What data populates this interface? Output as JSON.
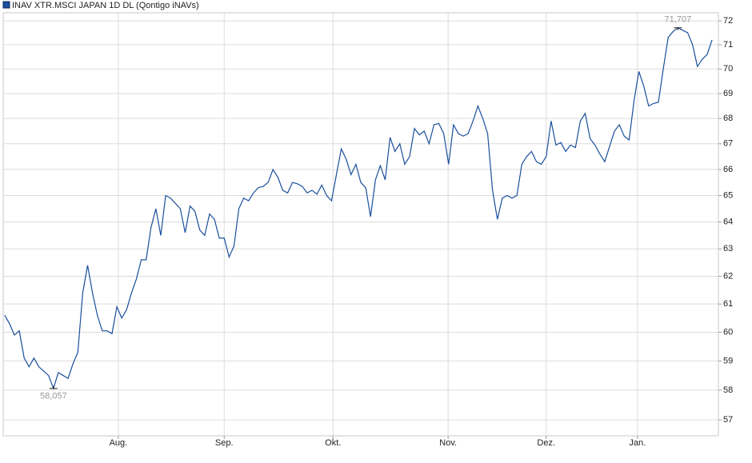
{
  "chart_data": {
    "type": "line",
    "x": [
      0,
      1,
      2,
      3,
      4,
      5,
      6,
      7,
      8,
      9,
      10,
      11,
      12,
      13,
      14,
      15,
      16,
      17,
      18,
      19,
      20,
      21,
      22,
      23,
      24,
      25,
      26,
      27,
      28,
      29,
      30,
      31,
      32,
      33,
      34,
      35,
      36,
      37,
      38,
      39,
      40,
      41,
      42,
      43,
      44,
      45,
      46,
      47,
      48,
      49,
      50,
      51,
      52,
      53,
      54,
      55,
      56,
      57,
      58,
      59,
      60,
      61,
      62,
      63,
      64,
      65,
      66,
      67,
      68,
      69,
      70,
      71,
      72,
      73,
      74,
      75,
      76,
      77,
      78,
      79,
      80,
      81,
      82,
      83,
      84,
      85,
      86,
      87,
      88,
      89,
      90,
      91,
      92,
      93,
      94,
      95,
      96,
      97,
      98,
      99,
      100,
      101,
      102,
      103,
      104,
      105,
      106,
      107,
      108,
      109,
      110,
      111,
      112,
      113,
      114,
      115,
      116,
      117,
      118,
      119,
      120,
      121,
      122,
      123,
      124,
      125,
      126,
      127,
      128,
      129,
      130,
      131,
      132,
      133,
      134,
      135,
      136,
      137,
      138,
      139,
      140,
      141,
      142,
      143,
      144,
      145
    ],
    "series": [
      {
        "name": "INAV XTR.MSCI JAPAN 1D DL (Qontigo iNAVs)",
        "color": "#1a4f9c",
        "values": [
          60.6,
          60.3,
          59.9,
          60.05,
          59.1,
          58.8,
          59.1,
          58.8,
          58.65,
          58.5,
          58.057,
          58.6,
          58.5,
          58.4,
          58.9,
          59.3,
          61.4,
          62.4,
          61.4,
          60.6,
          60.05,
          60.05,
          59.95,
          60.9,
          60.5,
          60.8,
          61.4,
          61.9,
          62.6,
          62.6,
          63.8,
          64.5,
          63.5,
          65.0,
          64.9,
          64.7,
          64.5,
          63.6,
          64.6,
          64.4,
          63.7,
          63.5,
          64.3,
          64.1,
          63.4,
          63.4,
          62.7,
          63.1,
          64.5,
          64.9,
          64.8,
          65.1,
          65.3,
          65.35,
          65.5,
          66.0,
          65.7,
          65.2,
          65.1,
          65.5,
          65.45,
          65.35,
          65.1,
          65.2,
          65.05,
          65.4,
          65.0,
          64.8,
          65.8,
          66.8,
          66.4,
          65.8,
          66.2,
          65.5,
          65.3,
          64.2,
          65.6,
          66.15,
          65.6,
          67.25,
          66.7,
          67.0,
          66.2,
          66.5,
          67.6,
          67.35,
          67.5,
          67.0,
          67.75,
          67.8,
          67.4,
          66.2,
          67.75,
          67.4,
          67.3,
          67.4,
          67.9,
          68.5,
          68.0,
          67.4,
          65.2,
          64.1,
          64.9,
          65.0,
          64.9,
          65.0,
          66.2,
          66.5,
          66.7,
          66.3,
          66.2,
          66.5,
          67.9,
          66.95,
          67.05,
          66.7,
          66.95,
          66.85,
          67.9,
          68.2,
          67.2,
          66.95,
          66.6,
          66.3,
          66.9,
          67.5,
          67.75,
          67.3,
          67.15,
          68.7,
          69.9,
          69.3,
          68.5,
          68.6,
          68.65,
          70.0,
          71.3,
          71.55,
          71.707,
          71.6,
          71.5,
          71.0,
          70.1,
          70.4,
          70.6,
          71.2
        ]
      }
    ],
    "annotations": [
      {
        "x": 10,
        "value": 58.057,
        "label": "58,057"
      },
      {
        "x": 138,
        "value": 71.707,
        "label": "71,707"
      }
    ],
    "xlim": [
      -0.3,
      146.3
    ],
    "xticks": [
      {
        "value": 23.3,
        "label": "Aug."
      },
      {
        "value": 45.0,
        "label": "Sep."
      },
      {
        "value": 67.3,
        "label": "Okt."
      },
      {
        "value": 90.9,
        "label": "Nov."
      },
      {
        "value": 111.0,
        "label": "Dez."
      },
      {
        "value": 129.7,
        "label": "Jan."
      }
    ],
    "ylim": [
      56.47,
      72.34
    ],
    "yticks": [
      57,
      58,
      59,
      60,
      61,
      62,
      63,
      64,
      65,
      66,
      67,
      68,
      69,
      70,
      71,
      72
    ],
    "log_y": true,
    "grid": true
  }
}
